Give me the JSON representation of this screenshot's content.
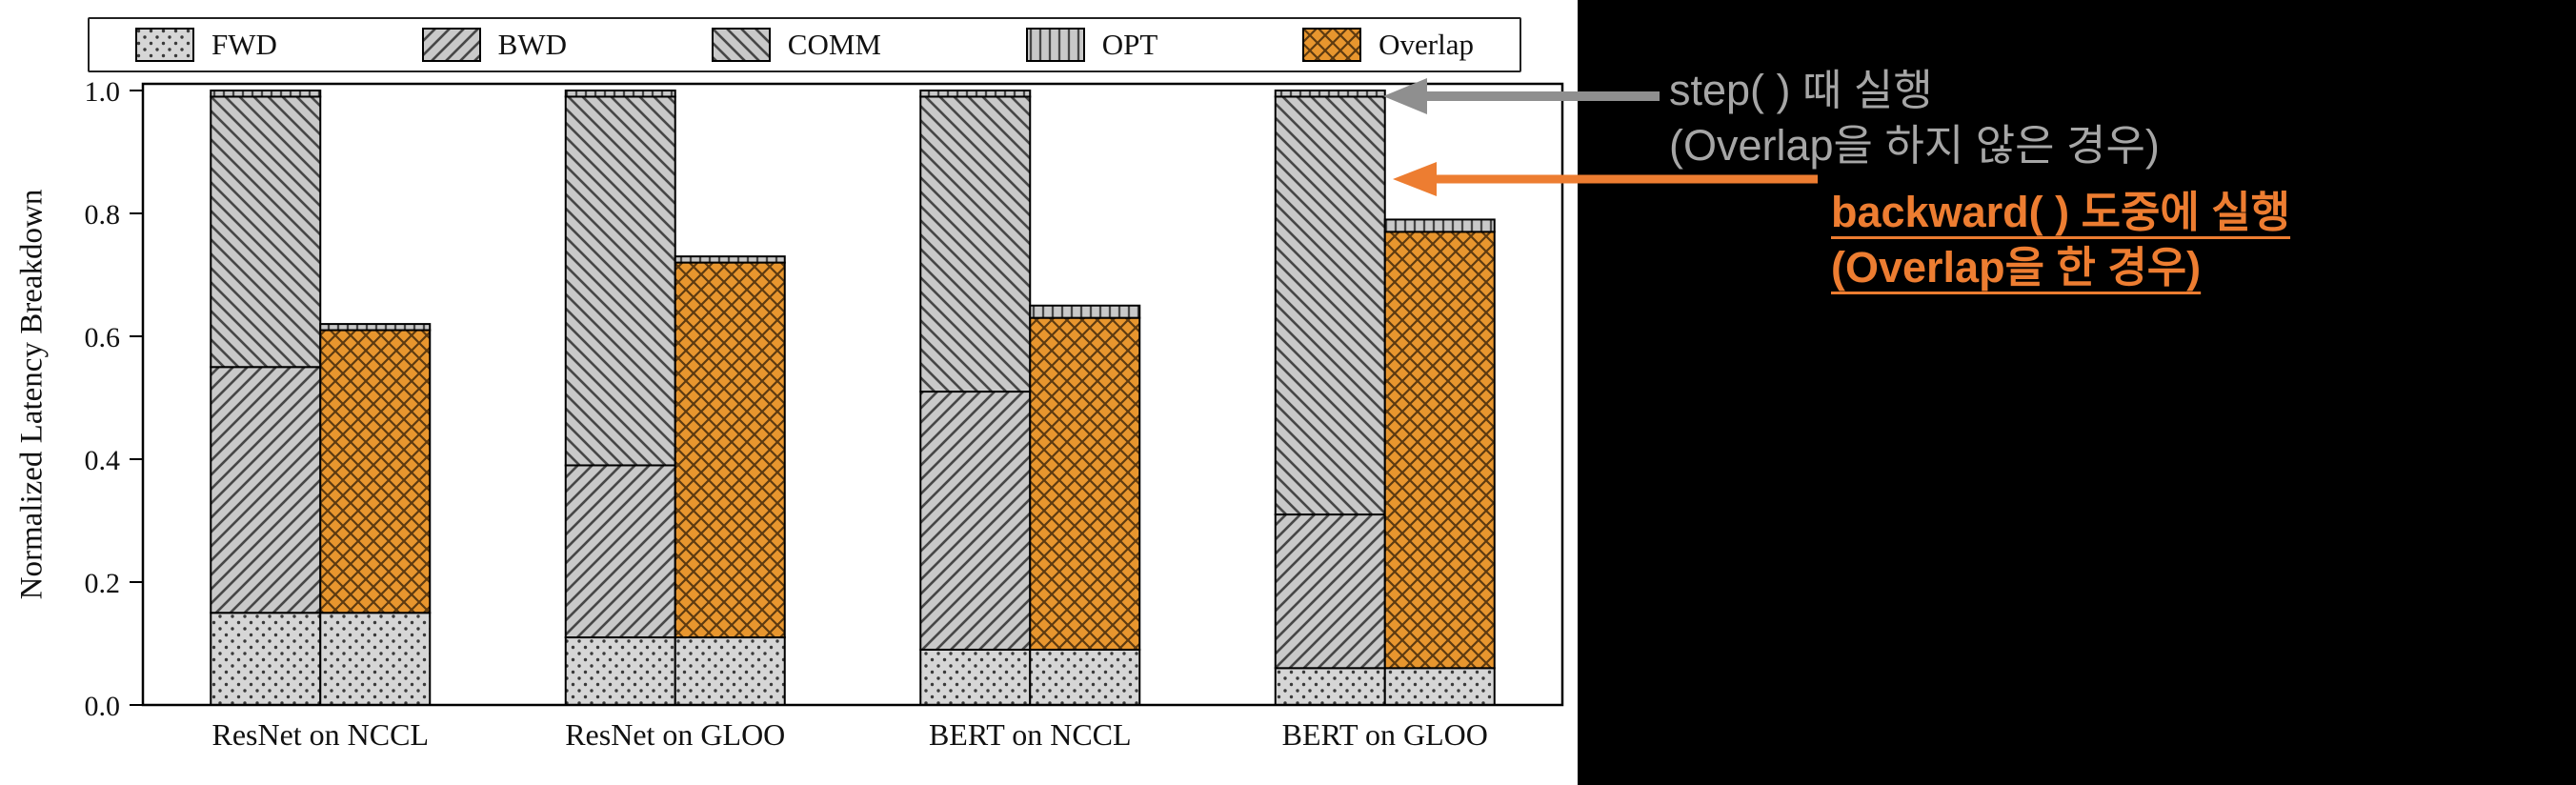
{
  "figure": {
    "background": "#000000",
    "chart_background": "#ffffff"
  },
  "chart_data": {
    "type": "bar",
    "stacked": true,
    "title": "",
    "ylabel": "Normalized Latency Breakdown",
    "xlabel": "",
    "ylim": [
      0,
      1.01
    ],
    "yticks": [
      "0.0",
      "0.2",
      "0.4",
      "0.6",
      "0.8",
      "1.0"
    ],
    "grid": false,
    "legend_position": "top",
    "legend": [
      {
        "label": "FWD",
        "pattern": "dots",
        "color": "#d6d6d6"
      },
      {
        "label": "BWD",
        "pattern": "diagonal-forward",
        "color": "#c9c9c9"
      },
      {
        "label": "COMM",
        "pattern": "diagonal-back",
        "color": "#c9c9c9"
      },
      {
        "label": "OPT",
        "pattern": "vertical-lines",
        "color": "#c9c9c9"
      },
      {
        "label": "Overlap",
        "pattern": "crosshatch",
        "color": "#e8962e"
      }
    ],
    "categories": [
      "ResNet on NCCL",
      "ResNet on GLOO",
      "BERT on NCCL",
      "BERT on GLOO"
    ],
    "groups": [
      {
        "category": "ResNet on NCCL",
        "no_overlap_bar": [
          {
            "name": "FWD",
            "value": 0.15
          },
          {
            "name": "BWD",
            "value": 0.4
          },
          {
            "name": "COMM",
            "value": 0.44
          },
          {
            "name": "OPT",
            "value": 0.01
          }
        ],
        "overlap_bar": [
          {
            "name": "FWD",
            "value": 0.15
          },
          {
            "name": "Overlap",
            "value": 0.46
          },
          {
            "name": "OPT",
            "value": 0.01
          }
        ]
      },
      {
        "category": "ResNet on GLOO",
        "no_overlap_bar": [
          {
            "name": "FWD",
            "value": 0.11
          },
          {
            "name": "BWD",
            "value": 0.28
          },
          {
            "name": "COMM",
            "value": 0.6
          },
          {
            "name": "OPT",
            "value": 0.01
          }
        ],
        "overlap_bar": [
          {
            "name": "FWD",
            "value": 0.11
          },
          {
            "name": "Overlap",
            "value": 0.61
          },
          {
            "name": "OPT",
            "value": 0.01
          }
        ]
      },
      {
        "category": "BERT on NCCL",
        "no_overlap_bar": [
          {
            "name": "FWD",
            "value": 0.09
          },
          {
            "name": "BWD",
            "value": 0.42
          },
          {
            "name": "COMM",
            "value": 0.48
          },
          {
            "name": "OPT",
            "value": 0.01
          }
        ],
        "overlap_bar": [
          {
            "name": "FWD",
            "value": 0.09
          },
          {
            "name": "Overlap",
            "value": 0.54
          },
          {
            "name": "OPT",
            "value": 0.02
          }
        ]
      },
      {
        "category": "BERT on GLOO",
        "no_overlap_bar": [
          {
            "name": "FWD",
            "value": 0.06
          },
          {
            "name": "BWD",
            "value": 0.25
          },
          {
            "name": "COMM",
            "value": 0.68
          },
          {
            "name": "OPT",
            "value": 0.01
          }
        ],
        "overlap_bar": [
          {
            "name": "FWD",
            "value": 0.06
          },
          {
            "name": "Overlap",
            "value": 0.71
          },
          {
            "name": "OPT",
            "value": 0.02
          }
        ]
      }
    ]
  },
  "annotations": {
    "step": {
      "line1": "step( ) 때 실행",
      "line2": "(Overlap을 하지 않은 경우)",
      "text_color": "#a6a6a6",
      "arrow_color": "#8f8f8f",
      "underline": false
    },
    "backward": {
      "line1": "backward( ) 도중에 실행",
      "line2": "(Overlap을 한 경우)",
      "text_color": "#ed7d31",
      "arrow_color": "#ed7d31",
      "underline": true
    }
  }
}
